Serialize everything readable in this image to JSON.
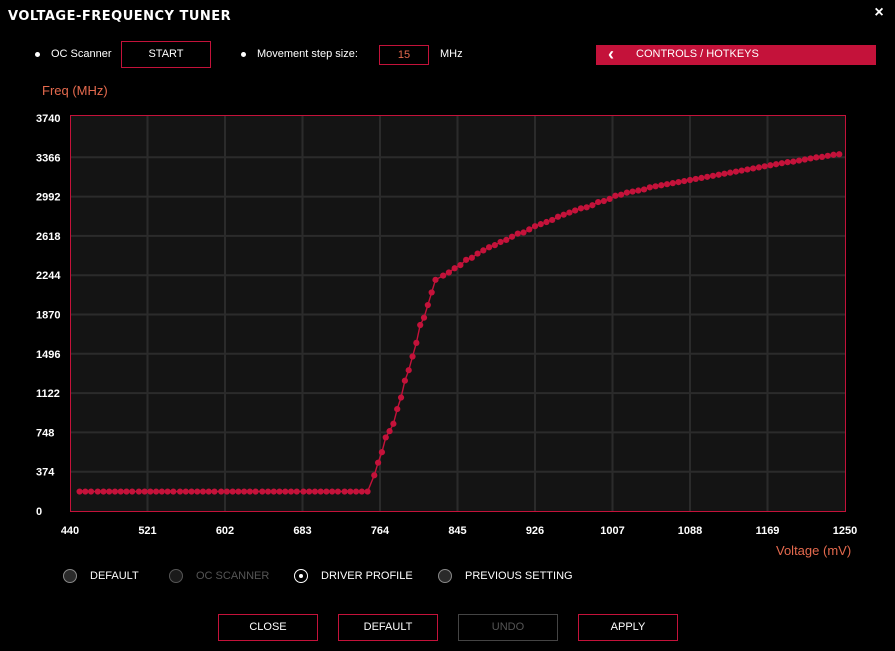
{
  "window": {
    "title": "VOLTAGE-FREQUENCY TUNER",
    "close_icon": "×"
  },
  "toolbar": {
    "oc_scanner_label": "OC Scanner",
    "start_label": "START",
    "step_label": "Movement step size:",
    "step_value": "15",
    "step_unit": "MHz",
    "controls_label": "CONTROLS / HOTKEYS",
    "controls_icon": "‹"
  },
  "colors": {
    "accent": "#c4123a",
    "axis_title": "#e56a4e",
    "plot_bg": "#141414",
    "grid": "#2b2b2b"
  },
  "chart_data": {
    "type": "line",
    "ylabel": "Freq (MHz)",
    "xlabel": "Voltage (mV)",
    "xlim": [
      440,
      1250
    ],
    "ylim": [
      0,
      3740
    ],
    "x_ticks": [
      "440",
      "521",
      "602",
      "683",
      "764",
      "845",
      "926",
      "1007",
      "1088",
      "1169",
      "1250"
    ],
    "y_ticks": [
      "3740",
      "3366",
      "2992",
      "2618",
      "2244",
      "1870",
      "1496",
      "1122",
      "748",
      "374",
      "0"
    ],
    "grid": true,
    "series": [
      {
        "points": [
          [
            450,
            185
          ],
          [
            456,
            185
          ],
          [
            462,
            185
          ],
          [
            469,
            185
          ],
          [
            475,
            185
          ],
          [
            481,
            185
          ],
          [
            487,
            185
          ],
          [
            493,
            185
          ],
          [
            499,
            185
          ],
          [
            505,
            185
          ],
          [
            512,
            185
          ],
          [
            518,
            185
          ],
          [
            524,
            185
          ],
          [
            530,
            185
          ],
          [
            536,
            185
          ],
          [
            542,
            185
          ],
          [
            548,
            185
          ],
          [
            555,
            185
          ],
          [
            561,
            185
          ],
          [
            567,
            185
          ],
          [
            573,
            185
          ],
          [
            579,
            185
          ],
          [
            585,
            185
          ],
          [
            591,
            185
          ],
          [
            598,
            185
          ],
          [
            604,
            185
          ],
          [
            610,
            185
          ],
          [
            616,
            185
          ],
          [
            622,
            185
          ],
          [
            628,
            185
          ],
          [
            634,
            185
          ],
          [
            641,
            185
          ],
          [
            647,
            185
          ],
          [
            653,
            185
          ],
          [
            659,
            185
          ],
          [
            665,
            185
          ],
          [
            671,
            185
          ],
          [
            677,
            185
          ],
          [
            684,
            185
          ],
          [
            690,
            185
          ],
          [
            696,
            185
          ],
          [
            702,
            185
          ],
          [
            708,
            185
          ],
          [
            714,
            185
          ],
          [
            720,
            185
          ],
          [
            727,
            185
          ],
          [
            733,
            185
          ],
          [
            739,
            185
          ],
          [
            745,
            185
          ],
          [
            751,
            185
          ],
          [
            758,
            340
          ],
          [
            762,
            460
          ],
          [
            766,
            560
          ],
          [
            770,
            700
          ],
          [
            774,
            760
          ],
          [
            778,
            830
          ],
          [
            782,
            970
          ],
          [
            786,
            1080
          ],
          [
            790,
            1240
          ],
          [
            794,
            1340
          ],
          [
            798,
            1470
          ],
          [
            802,
            1600
          ],
          [
            806,
            1770
          ],
          [
            810,
            1840
          ],
          [
            814,
            1960
          ],
          [
            818,
            2080
          ],
          [
            822,
            2200
          ],
          [
            830,
            2240
          ],
          [
            836,
            2270
          ],
          [
            842,
            2310
          ],
          [
            848,
            2340
          ],
          [
            854,
            2390
          ],
          [
            860,
            2410
          ],
          [
            866,
            2450
          ],
          [
            872,
            2480
          ],
          [
            878,
            2510
          ],
          [
            884,
            2530
          ],
          [
            890,
            2560
          ],
          [
            896,
            2580
          ],
          [
            902,
            2610
          ],
          [
            908,
            2640
          ],
          [
            914,
            2650
          ],
          [
            920,
            2680
          ],
          [
            926,
            2710
          ],
          [
            932,
            2730
          ],
          [
            938,
            2750
          ],
          [
            944,
            2770
          ],
          [
            950,
            2800
          ],
          [
            956,
            2820
          ],
          [
            962,
            2840
          ],
          [
            968,
            2860
          ],
          [
            974,
            2880
          ],
          [
            980,
            2890
          ],
          [
            986,
            2910
          ],
          [
            992,
            2940
          ],
          [
            998,
            2950
          ],
          [
            1004,
            2970
          ],
          [
            1010,
            3000
          ],
          [
            1016,
            3010
          ],
          [
            1022,
            3030
          ],
          [
            1028,
            3040
          ],
          [
            1034,
            3050
          ],
          [
            1040,
            3060
          ],
          [
            1046,
            3080
          ],
          [
            1052,
            3090
          ],
          [
            1058,
            3100
          ],
          [
            1064,
            3110
          ],
          [
            1070,
            3120
          ],
          [
            1076,
            3130
          ],
          [
            1082,
            3140
          ],
          [
            1088,
            3150
          ],
          [
            1094,
            3160
          ],
          [
            1100,
            3170
          ],
          [
            1106,
            3180
          ],
          [
            1112,
            3190
          ],
          [
            1118,
            3200
          ],
          [
            1124,
            3210
          ],
          [
            1130,
            3220
          ],
          [
            1136,
            3230
          ],
          [
            1142,
            3240
          ],
          [
            1148,
            3250
          ],
          [
            1154,
            3260
          ],
          [
            1160,
            3270
          ],
          [
            1166,
            3280
          ],
          [
            1172,
            3290
          ],
          [
            1178,
            3300
          ],
          [
            1184,
            3310
          ],
          [
            1190,
            3320
          ],
          [
            1196,
            3325
          ],
          [
            1202,
            3335
          ],
          [
            1208,
            3345
          ],
          [
            1214,
            3355
          ],
          [
            1220,
            3365
          ],
          [
            1226,
            3370
          ],
          [
            1232,
            3380
          ],
          [
            1238,
            3390
          ],
          [
            1244,
            3395
          ]
        ]
      }
    ]
  },
  "profiles": {
    "options": [
      {
        "label": "DEFAULT",
        "state": "normal"
      },
      {
        "label": "OC SCANNER",
        "state": "disabled"
      },
      {
        "label": "DRIVER PROFILE",
        "state": "selected"
      },
      {
        "label": "PREVIOUS SETTING",
        "state": "normal"
      }
    ]
  },
  "footer": {
    "close_label": "CLOSE",
    "default_label": "DEFAULT",
    "undo_label": "UNDO",
    "apply_label": "APPLY"
  }
}
